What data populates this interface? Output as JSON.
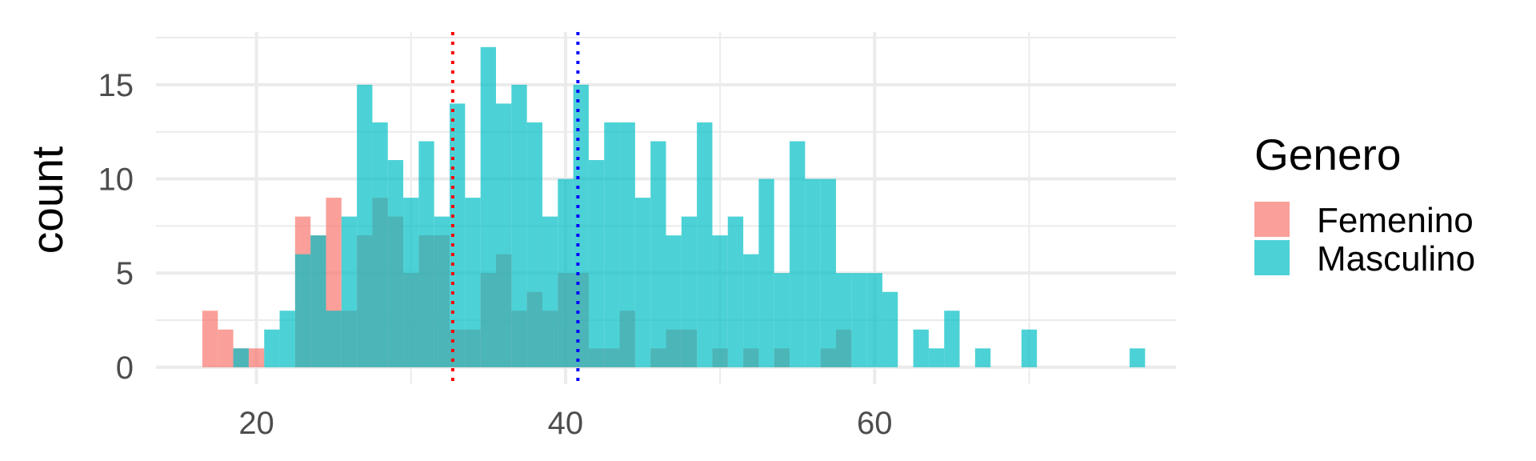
{
  "chart_data": {
    "type": "histogram",
    "xlabel": "",
    "ylabel": "count",
    "xlim": [
      13.5,
      79.5
    ],
    "ylim": [
      -0.9,
      17.8
    ],
    "x_ticks": [
      20,
      40,
      60
    ],
    "y_ticks": [
      0,
      5,
      10,
      15
    ],
    "grid": true,
    "legend": {
      "title": "Genero",
      "position": "right",
      "entries": [
        "Femenino",
        "Masculino"
      ]
    },
    "bin_width": 1,
    "series": [
      {
        "name": "Femenino",
        "color": "#F8766D",
        "bins": [
          {
            "x": 17,
            "count": 3
          },
          {
            "x": 18,
            "count": 2
          },
          {
            "x": 19,
            "count": 1
          },
          {
            "x": 20,
            "count": 1
          },
          {
            "x": 23,
            "count": 8
          },
          {
            "x": 24,
            "count": 7
          },
          {
            "x": 25,
            "count": 9
          },
          {
            "x": 26,
            "count": 3
          },
          {
            "x": 27,
            "count": 7
          },
          {
            "x": 28,
            "count": 9
          },
          {
            "x": 29,
            "count": 8
          },
          {
            "x": 30,
            "count": 5
          },
          {
            "x": 31,
            "count": 7
          },
          {
            "x": 32,
            "count": 7
          },
          {
            "x": 33,
            "count": 2
          },
          {
            "x": 34,
            "count": 2
          },
          {
            "x": 35,
            "count": 5
          },
          {
            "x": 36,
            "count": 6
          },
          {
            "x": 37,
            "count": 3
          },
          {
            "x": 38,
            "count": 4
          },
          {
            "x": 39,
            "count": 3
          },
          {
            "x": 40,
            "count": 5
          },
          {
            "x": 41,
            "count": 5
          },
          {
            "x": 42,
            "count": 1
          },
          {
            "x": 43,
            "count": 1
          },
          {
            "x": 44,
            "count": 3
          },
          {
            "x": 46,
            "count": 1
          },
          {
            "x": 47,
            "count": 2
          },
          {
            "x": 48,
            "count": 2
          },
          {
            "x": 50,
            "count": 1
          },
          {
            "x": 52,
            "count": 1
          },
          {
            "x": 54,
            "count": 1
          },
          {
            "x": 57,
            "count": 1
          },
          {
            "x": 58,
            "count": 2
          }
        ]
      },
      {
        "name": "Masculino",
        "color": "#00BFC4",
        "bins": [
          {
            "x": 19,
            "count": 1
          },
          {
            "x": 21,
            "count": 2
          },
          {
            "x": 22,
            "count": 3
          },
          {
            "x": 23,
            "count": 6
          },
          {
            "x": 24,
            "count": 7
          },
          {
            "x": 25,
            "count": 3
          },
          {
            "x": 26,
            "count": 8
          },
          {
            "x": 27,
            "count": 15
          },
          {
            "x": 28,
            "count": 13
          },
          {
            "x": 29,
            "count": 11
          },
          {
            "x": 30,
            "count": 9
          },
          {
            "x": 31,
            "count": 12
          },
          {
            "x": 32,
            "count": 8
          },
          {
            "x": 33,
            "count": 14
          },
          {
            "x": 34,
            "count": 9
          },
          {
            "x": 35,
            "count": 17
          },
          {
            "x": 36,
            "count": 14
          },
          {
            "x": 37,
            "count": 15
          },
          {
            "x": 38,
            "count": 13
          },
          {
            "x": 39,
            "count": 8
          },
          {
            "x": 40,
            "count": 10
          },
          {
            "x": 41,
            "count": 15
          },
          {
            "x": 42,
            "count": 11
          },
          {
            "x": 43,
            "count": 13
          },
          {
            "x": 44,
            "count": 13
          },
          {
            "x": 45,
            "count": 9
          },
          {
            "x": 46,
            "count": 12
          },
          {
            "x": 47,
            "count": 7
          },
          {
            "x": 48,
            "count": 8
          },
          {
            "x": 49,
            "count": 13
          },
          {
            "x": 50,
            "count": 7
          },
          {
            "x": 51,
            "count": 8
          },
          {
            "x": 52,
            "count": 6
          },
          {
            "x": 53,
            "count": 10
          },
          {
            "x": 54,
            "count": 5
          },
          {
            "x": 55,
            "count": 12
          },
          {
            "x": 56,
            "count": 10
          },
          {
            "x": 57,
            "count": 10
          },
          {
            "x": 58,
            "count": 5
          },
          {
            "x": 59,
            "count": 5
          },
          {
            "x": 60,
            "count": 5
          },
          {
            "x": 61,
            "count": 4
          },
          {
            "x": 63,
            "count": 2
          },
          {
            "x": 64,
            "count": 1
          },
          {
            "x": 65,
            "count": 3
          },
          {
            "x": 67,
            "count": 1
          },
          {
            "x": 70,
            "count": 2
          },
          {
            "x": 77,
            "count": 1
          }
        ]
      }
    ],
    "reference_lines": [
      {
        "x": 32.7,
        "color": "#FF0000",
        "style": "dotted"
      },
      {
        "x": 40.8,
        "color": "#0000FF",
        "style": "dotted"
      }
    ]
  }
}
